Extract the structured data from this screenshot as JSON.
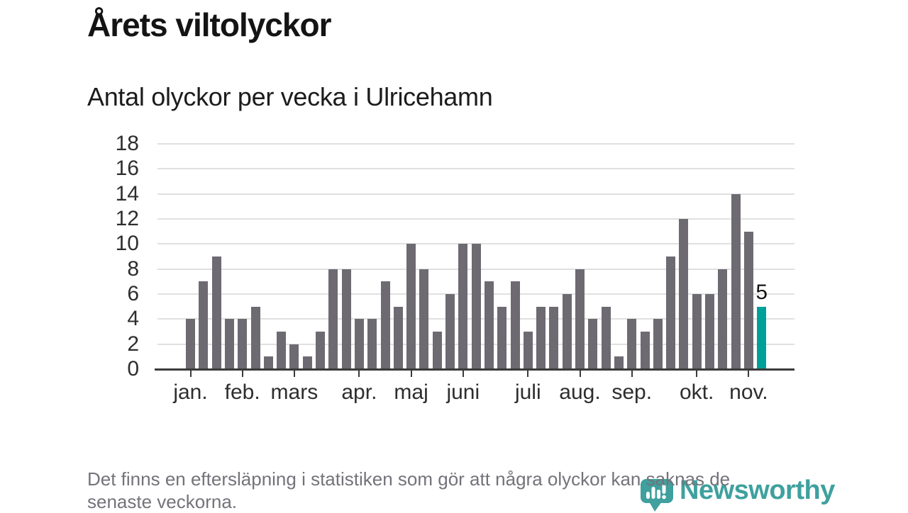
{
  "header": {
    "title": "Årets viltolyckor",
    "subtitle": "Antal olyckor per vecka i Ulricehamn"
  },
  "chart_data": {
    "type": "bar",
    "title": "Årets viltolyckor",
    "subtitle": "Antal olyckor per vecka i Ulricehamn",
    "xlabel": "",
    "ylabel": "",
    "ylim": [
      0,
      18
    ],
    "y_ticks": [
      0,
      2,
      4,
      6,
      8,
      10,
      12,
      14,
      16,
      18
    ],
    "grid": true,
    "legend": false,
    "values": [
      4,
      7,
      9,
      4,
      4,
      5,
      1,
      3,
      2,
      1,
      3,
      8,
      8,
      4,
      4,
      7,
      5,
      10,
      8,
      3,
      6,
      10,
      10,
      7,
      5,
      7,
      3,
      5,
      5,
      6,
      8,
      4,
      5,
      1,
      4,
      3,
      4,
      9,
      12,
      6,
      6,
      8,
      14,
      11,
      5
    ],
    "highlight_index": 44,
    "highlight_label": "5",
    "months": [
      {
        "label": "jan.",
        "week": 1
      },
      {
        "label": "feb.",
        "week": 5
      },
      {
        "label": "mars",
        "week": 9
      },
      {
        "label": "apr.",
        "week": 14
      },
      {
        "label": "maj",
        "week": 18
      },
      {
        "label": "juni",
        "week": 22
      },
      {
        "label": "juli",
        "week": 27
      },
      {
        "label": "aug.",
        "week": 31
      },
      {
        "label": "sep.",
        "week": 35
      },
      {
        "label": "okt.",
        "week": 40
      },
      {
        "label": "nov.",
        "week": 44
      }
    ],
    "colors": {
      "bar": "#6d6a72",
      "highlight": "#00a09a",
      "gridline": "#e0e0e0",
      "axis": "#3b3b3b"
    }
  },
  "footer": {
    "note_line1": "Det finns en eftersläpning i statistiken som gör att några olyckor kan saknas de",
    "note_line2": "senaste veckorna."
  },
  "logo": {
    "name": "Newsworthy",
    "color": "#3fa09e"
  }
}
